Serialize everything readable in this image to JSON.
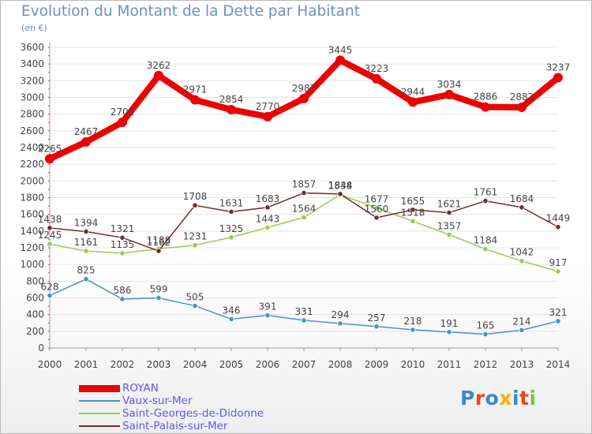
{
  "chart_data": {
    "type": "line",
    "title": "Evolution du Montant de la Dette par Habitant",
    "subtitle": "(en €)",
    "x": [
      "2000",
      "2001",
      "2002",
      "2003",
      "2004",
      "2005",
      "2006",
      "2007",
      "2008",
      "2009",
      "2010",
      "2011",
      "2012",
      "2013",
      "2014"
    ],
    "ylim": [
      0,
      3600
    ],
    "yticks": [
      0,
      200,
      400,
      600,
      800,
      1000,
      1200,
      1400,
      1600,
      1800,
      2000,
      2200,
      2400,
      2600,
      2800,
      3000,
      3200,
      3400,
      3600
    ],
    "grid": "horizontal",
    "legend": "bottom-left",
    "series": [
      {
        "name": "ROYAN",
        "color": "#ee0000",
        "values": [
          2265,
          2467,
          2702,
          3262,
          2971,
          2854,
          2770,
          2987,
          3445,
          3223,
          2944,
          3034,
          2886,
          2882,
          3237
        ],
        "labels": [
          "2265",
          "2467",
          "2702",
          "3262",
          "2971",
          "2854",
          "2770",
          "2987",
          "3445",
          "3223",
          "2944",
          "3034",
          "2886",
          "2882",
          "3237"
        ]
      },
      {
        "name": "Vaux-sur-Mer",
        "color": "#4a90d0",
        "values": [
          628,
          825,
          586,
          599,
          505,
          346,
          391,
          331,
          294,
          257,
          218,
          191,
          165,
          214,
          321
        ],
        "labels": [
          "628",
          "825",
          "586",
          "599",
          "505",
          "346",
          "391",
          "331",
          "294",
          "257",
          "218",
          "191",
          "165",
          "214",
          "321"
        ]
      },
      {
        "name": "Saint-Georges-de-Didonne",
        "color": "#90d050",
        "values": [
          1245,
          1161,
          1135,
          1188,
          1231,
          1325,
          1443,
          1564,
          1838,
          1677,
          1518,
          1357,
          1184,
          1042,
          917
        ],
        "labels": [
          "1245",
          "1161",
          "1135",
          "1188",
          "1231",
          "1325",
          "1443",
          "1564",
          "1838",
          "1677",
          "1518",
          "1357",
          "1184",
          "1042",
          "917"
        ]
      },
      {
        "name": "Saint-Palais-sur-Mer",
        "color": "#7a2a2a",
        "values": [
          1438,
          1394,
          1321,
          1162,
          1708,
          1631,
          1683,
          1857,
          1844,
          1560,
          1655,
          1621,
          1761,
          1684,
          1449
        ],
        "labels": [
          "1438",
          "1394",
          "1321",
          "1162",
          "1708",
          "1631",
          "1683",
          "1857",
          "1844",
          "1560",
          "1655",
          "1621",
          "1761",
          "1684",
          "1449"
        ]
      }
    ]
  },
  "logo": {
    "letters": [
      {
        "char": "P",
        "color": "#3a88d0"
      },
      {
        "char": "r",
        "color": "#e84a1a"
      },
      {
        "char": "o",
        "color": "#3a88d0"
      },
      {
        "char": "x",
        "color": "#f0b400"
      },
      {
        "char": "i",
        "color": "#3a88d0"
      },
      {
        "char": "t",
        "color": "#e84a1a"
      },
      {
        "char": "i",
        "color": "#80c040"
      }
    ]
  }
}
